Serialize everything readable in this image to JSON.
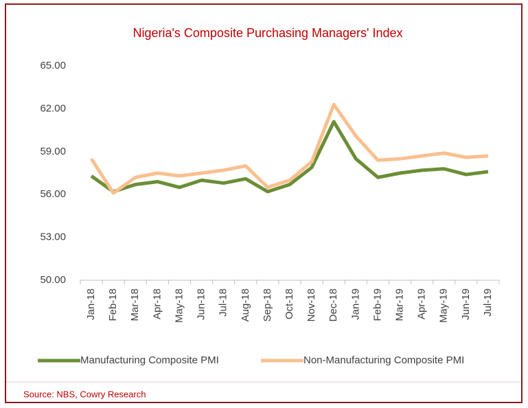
{
  "chart_data": {
    "type": "line",
    "title": "Nigeria's Composite Purchasing Managers' Index",
    "source": "Source: NBS, Cowry Research",
    "categories": [
      "Jan-18",
      "Feb-18",
      "Mar-18",
      "Apr-18",
      "May-18",
      "Jun-18",
      "Jul-18",
      "Aug-18",
      "Sep-18",
      "Oct-18",
      "Nov-18",
      "Dec-18",
      "Jan-19",
      "Feb-19",
      "Mar-19",
      "Apr-19",
      "May-19",
      "Jun-19",
      "Jul-19"
    ],
    "series": [
      {
        "name": "Manufacturing Composite PMI",
        "color": "#6b8e35",
        "values": [
          57.3,
          56.2,
          56.7,
          56.9,
          56.5,
          57.0,
          56.8,
          57.1,
          56.2,
          56.7,
          57.9,
          61.1,
          58.5,
          57.2,
          57.5,
          57.7,
          57.8,
          57.4,
          57.6
        ]
      },
      {
        "name": "Non-Manufacturing Composite PMI",
        "color": "#f9c08f",
        "values": [
          58.5,
          56.1,
          57.2,
          57.5,
          57.3,
          57.5,
          57.7,
          58.0,
          56.5,
          57.0,
          58.3,
          62.3,
          60.1,
          58.4,
          58.5,
          58.7,
          58.9,
          58.6,
          58.7
        ]
      }
    ],
    "ylim": [
      50,
      65
    ],
    "yticks": [
      {
        "value": 50,
        "label": "50.00"
      },
      {
        "value": 53,
        "label": "53.00"
      },
      {
        "value": 56,
        "label": "56.00"
      },
      {
        "value": 59,
        "label": "59.00"
      },
      {
        "value": 62,
        "label": "62.00"
      },
      {
        "value": 65,
        "label": "65.00"
      }
    ],
    "grid": false,
    "legend": "bottom"
  }
}
